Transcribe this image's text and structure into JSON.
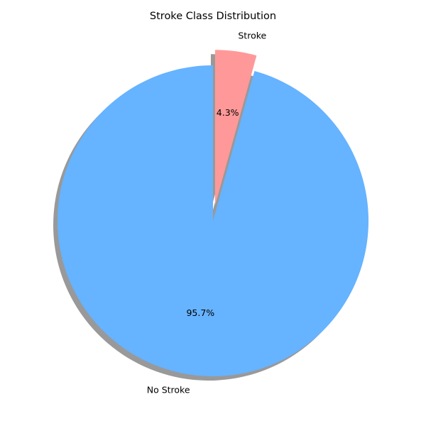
{
  "chart_data": {
    "type": "pie",
    "title": "Stroke Class Distribution",
    "slices": [
      {
        "label": "No Stroke",
        "percent": 95.7,
        "percent_label": "95.7%",
        "color": "#66b3ff",
        "explode": 0.0
      },
      {
        "label": "Stroke",
        "percent": 4.3,
        "percent_label": "4.3%",
        "color": "#ff9999",
        "explode": 0.1
      }
    ],
    "start_angle_deg": 90,
    "direction": "counterclockwise",
    "shadow": true,
    "legend": "none"
  }
}
